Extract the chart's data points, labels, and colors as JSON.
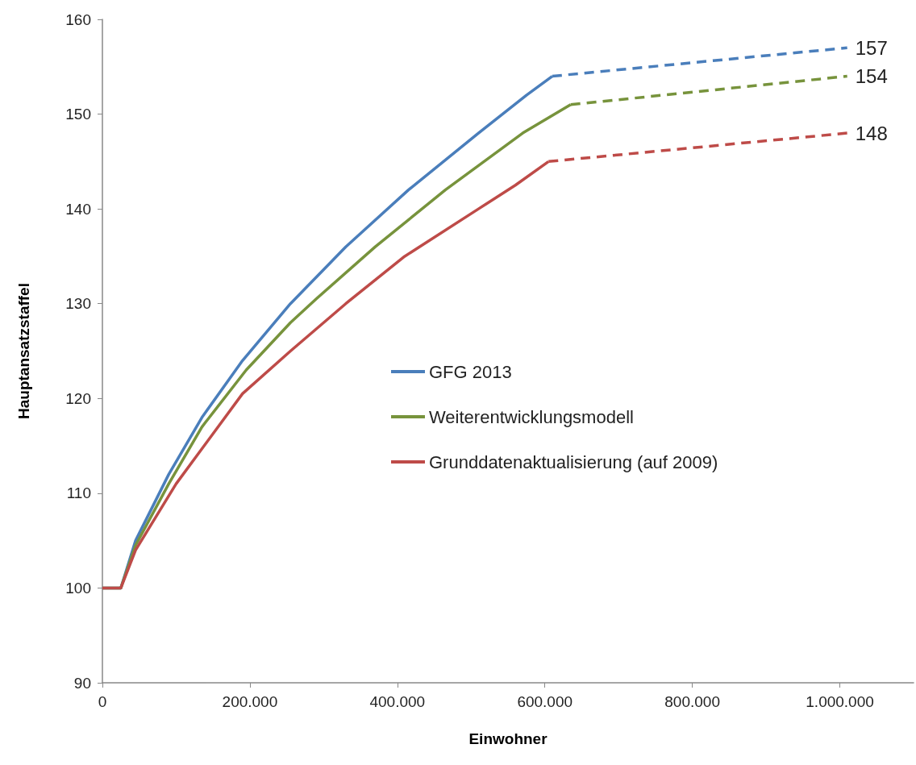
{
  "chart_data": {
    "type": "line",
    "xlabel": "Einwohner",
    "ylabel": "Hauptansatzstaffel",
    "xlim": [
      0,
      1100000
    ],
    "xticks": [
      0,
      {
        "value": 200000,
        "label": "200.000"
      },
      {
        "value": 400000,
        "label": "400.000"
      },
      {
        "value": 600000,
        "label": "600.000"
      },
      {
        "value": 800000,
        "label": "800.000"
      },
      {
        "value": 1000000,
        "label": "1.000.000"
      }
    ],
    "ylim": [
      90,
      160
    ],
    "yticks": [
      90,
      100,
      110,
      120,
      130,
      140,
      150,
      160
    ],
    "grid": false,
    "legend": "center",
    "marker": "none",
    "series": [
      {
        "name": "GFG 2013",
        "color": "#4a7ebb",
        "line_style": "solid",
        "x": [
          0,
          25000,
          45000,
          90000,
          135000,
          190000,
          255000,
          330000,
          415000,
          510000,
          575000,
          610000
        ],
        "values": [
          100,
          100,
          105,
          112,
          118,
          124,
          130,
          136,
          142,
          148,
          152,
          154
        ]
      },
      {
        "name": "Weiterentwicklungsmodell",
        "color": "#77933c",
        "line_style": "solid",
        "x": [
          0,
          25000,
          45000,
          90000,
          135000,
          195000,
          255000,
          290000,
          370000,
          465000,
          570000,
          635000
        ],
        "values": [
          100,
          100,
          104.5,
          111,
          117,
          123,
          128,
          130.5,
          136,
          142,
          148,
          151
        ]
      },
      {
        "name": "Grunddatenaktualisierung (auf 2009)",
        "color": "#be4b48",
        "line_style": "solid",
        "x": [
          0,
          25000,
          45000,
          100000,
          190000,
          255000,
          330000,
          410000,
          510000,
          560000,
          605000
        ],
        "values": [
          100,
          100,
          104,
          111,
          120.5,
          125,
          130,
          135,
          140,
          142.5,
          145
        ]
      },
      {
        "color": "#4a7ebb",
        "line_style": "dashed",
        "x": [
          610000,
          1010000
        ],
        "values": [
          154,
          157
        ],
        "value_labels": [
          null,
          "157"
        ]
      },
      {
        "color": "#77933c",
        "line_style": "dashed",
        "x": [
          635000,
          1010000
        ],
        "values": [
          151,
          154
        ],
        "value_labels": [
          null,
          "154"
        ]
      },
      {
        "color": "#be4b48",
        "line_style": "dashed",
        "x": [
          605000,
          1010000
        ],
        "values": [
          145,
          148
        ],
        "value_labels": [
          null,
          "148"
        ]
      }
    ]
  }
}
